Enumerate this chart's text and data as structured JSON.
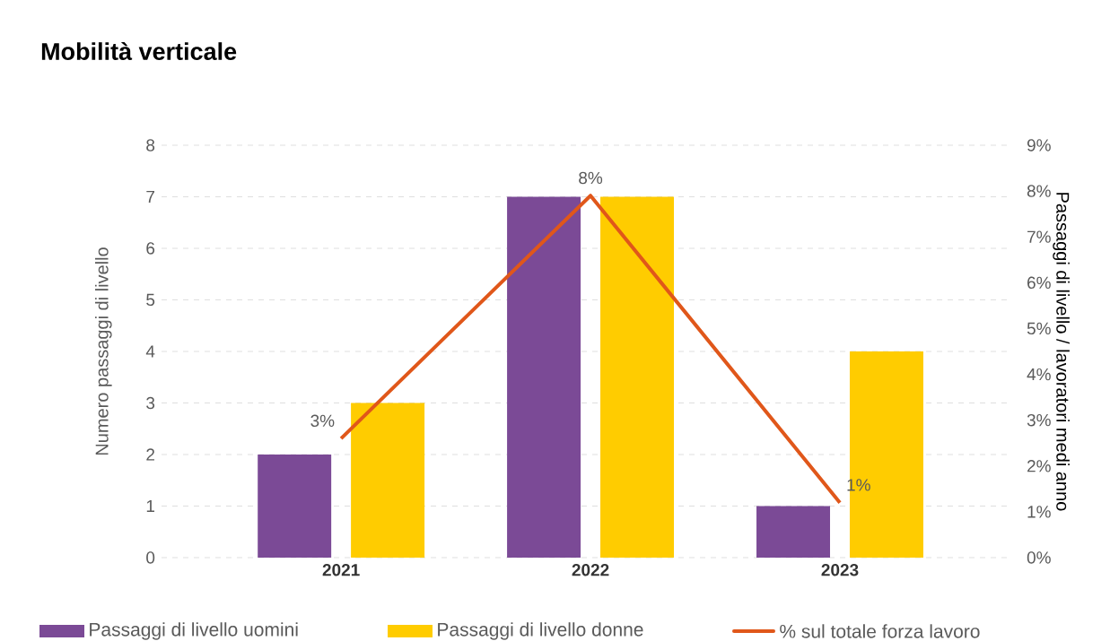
{
  "chart_data": {
    "type": "bar",
    "title": "Mobilità verticale",
    "categories": [
      "2021",
      "2022",
      "2023"
    ],
    "ylabel": "Numero passaggi di livello",
    "y2label": "Passaggi di livello / lavoratori medi anno",
    "ylim": [
      0,
      8
    ],
    "yticks": [
      0,
      1,
      2,
      3,
      4,
      5,
      6,
      7,
      8
    ],
    "y2lim": [
      0,
      9
    ],
    "y2ticks": [
      {
        "value": 0,
        "label": "0%"
      },
      {
        "value": 1,
        "label": "1%"
      },
      {
        "value": 2,
        "label": "2%"
      },
      {
        "value": 3,
        "label": "3%"
      },
      {
        "value": 4,
        "label": "4%"
      },
      {
        "value": 5,
        "label": "5%"
      },
      {
        "value": 6,
        "label": "6%"
      },
      {
        "value": 7,
        "label": "7%"
      },
      {
        "value": 8,
        "label": "8%"
      },
      {
        "value": 9,
        "label": "9%"
      }
    ],
    "grid": "y",
    "legend": "bottom",
    "series": [
      {
        "name": "Passaggi di livello uomini",
        "color": "#7b4a96",
        "values": [
          2,
          7,
          1
        ]
      },
      {
        "name": "Passaggi di livello donne",
        "color": "#ffcc00",
        "values": [
          3,
          7,
          4
        ]
      },
      {
        "name": "% sul totale forza lavoro",
        "type": "line",
        "axis": "y2",
        "color": "#e0571a",
        "values": [
          2.6,
          7.9,
          1.2
        ],
        "value_labels": [
          "3%",
          "8%",
          "1%"
        ]
      }
    ]
  }
}
